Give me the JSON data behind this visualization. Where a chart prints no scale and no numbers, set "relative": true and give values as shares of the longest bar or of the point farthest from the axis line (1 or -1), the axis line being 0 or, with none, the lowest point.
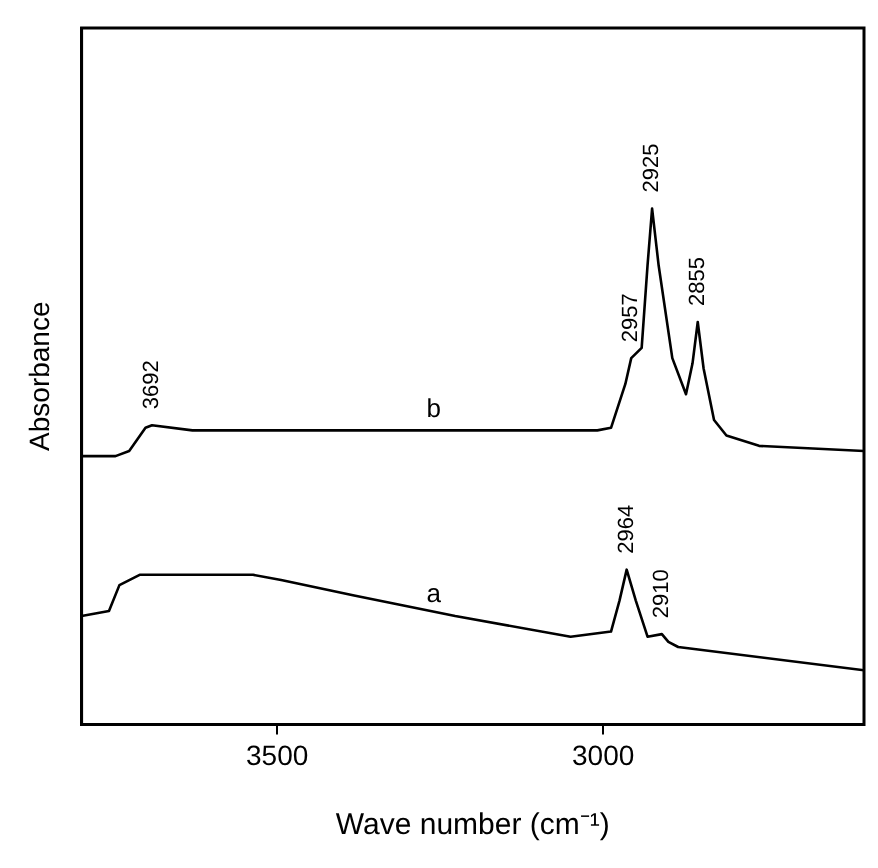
{
  "chart_data": {
    "type": "line",
    "xlabel": "Wave number (cm⁻¹)",
    "ylabel": "Absorbance",
    "relative": true,
    "xlim": [
      3800,
      2600
    ],
    "xticks": [
      3500,
      3000
    ],
    "tick_labels": "x",
    "grid": false,
    "legend": false,
    "marker": "none",
    "line_style": "solid",
    "series": [
      {
        "name": "a",
        "color": "#000000",
        "x": [
          3800,
          3758,
          3742,
          3711,
          3537,
          3494,
          3382,
          3227,
          3050,
          2988,
          2975,
          2964,
          2950,
          2932,
          2910,
          2900,
          2885,
          2600
        ],
        "values": [
          0.21,
          0.22,
          0.27,
          0.29,
          0.29,
          0.28,
          0.25,
          0.21,
          0.17,
          0.18,
          0.24,
          0.3,
          0.24,
          0.17,
          0.175,
          0.16,
          0.15,
          0.105
        ]
      },
      {
        "name": "b",
        "color": "#000000",
        "x": [
          3800,
          3748,
          3727,
          3702,
          3692,
          3630,
          3506,
          3009,
          2988,
          2966,
          2957,
          2941,
          2932,
          2925,
          2915,
          2894,
          2873,
          2863,
          2855,
          2846,
          2830,
          2811,
          2761,
          2600
        ],
        "values": [
          0.52,
          0.52,
          0.53,
          0.575,
          0.58,
          0.57,
          0.57,
          0.57,
          0.575,
          0.66,
          0.71,
          0.73,
          0.89,
          1,
          0.89,
          0.71,
          0.64,
          0.7,
          0.78,
          0.69,
          0.59,
          0.56,
          0.54,
          0.53
        ]
      }
    ],
    "annotations": [
      {
        "text": "3692",
        "x": 3692,
        "y": 0.58
      },
      {
        "text": "2957",
        "x": 2957,
        "y": 0.71
      },
      {
        "text": "2925",
        "x": 2925,
        "y": 1
      },
      {
        "text": "2855",
        "x": 2855,
        "y": 0.78
      },
      {
        "text": "2964",
        "x": 2964,
        "y": 0.3
      },
      {
        "text": "2910",
        "x": 2910,
        "y": 0.175
      }
    ]
  }
}
